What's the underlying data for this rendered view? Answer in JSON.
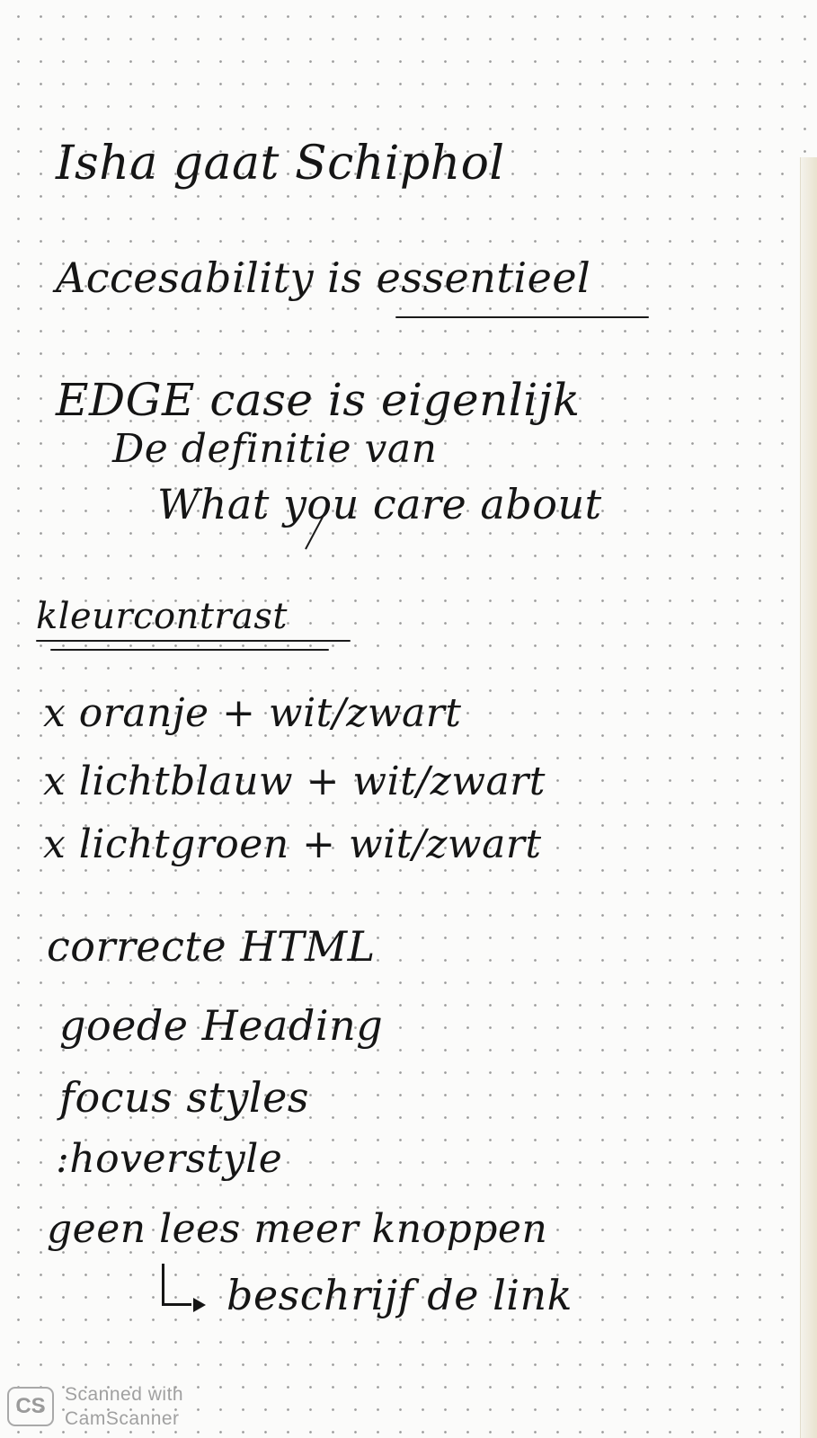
{
  "notes": {
    "line1": "Isha gaat Schiphol",
    "line2": "Accesability is essentieel",
    "line3": "EDGE case is eigenlijk",
    "line4": "De definitie van",
    "line5": "What you care about",
    "heading": "kleurcontrast",
    "item1": "x oranje + wit/zwart",
    "item2": "x lichtblauw + wit/zwart",
    "item3": "x lichtgroen + wit/zwart",
    "list1": "correcte HTML",
    "list2": "goede Heading",
    "list3": "focus styles",
    "list4": ":hoverstyle",
    "list5": "geen lees meer knoppen",
    "list6": "beschrijf de link"
  },
  "watermark": {
    "logo": "CS",
    "line1": "Scanned with",
    "line2": "CamScanner"
  }
}
